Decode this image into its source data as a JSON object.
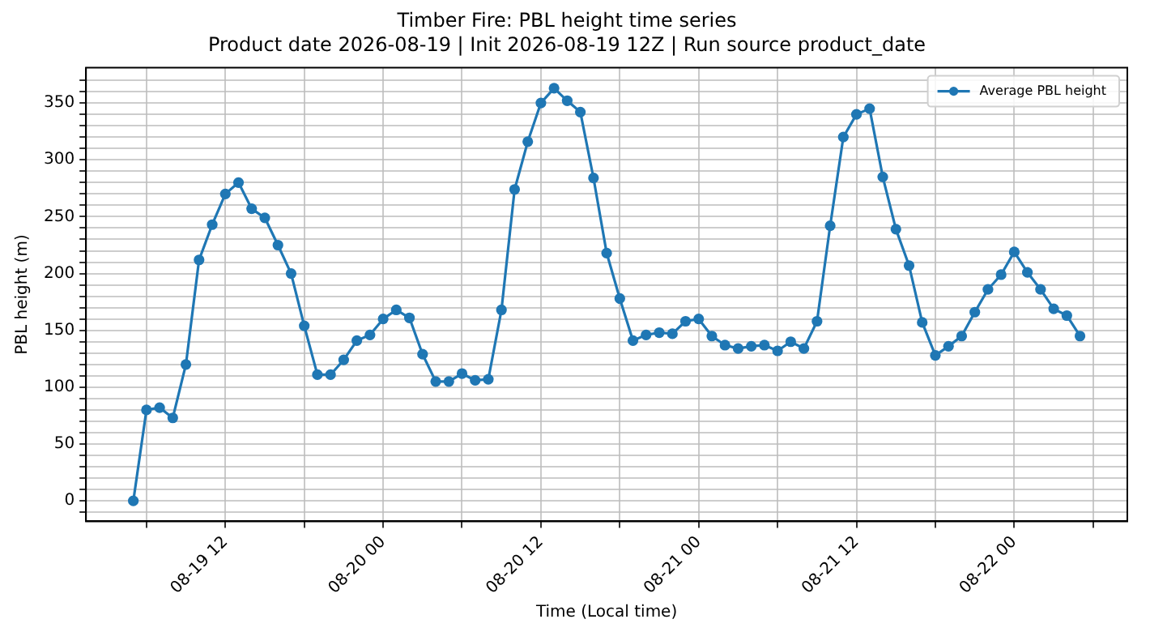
{
  "chart_data": {
    "type": "line",
    "title": "Timber Fire: PBL height time series",
    "subtitle": "Product date 2026-08-19 | Init 2026-08-19 12Z | Run source product_date",
    "xlabel": "Time (Local time)",
    "ylabel": "PBL height (m)",
    "x": [
      "2026-08-19T05:00",
      "2026-08-19T06:00",
      "2026-08-19T07:00",
      "2026-08-19T08:00",
      "2026-08-19T09:00",
      "2026-08-19T10:00",
      "2026-08-19T11:00",
      "2026-08-19T12:00",
      "2026-08-19T13:00",
      "2026-08-19T14:00",
      "2026-08-19T15:00",
      "2026-08-19T16:00",
      "2026-08-19T17:00",
      "2026-08-19T18:00",
      "2026-08-19T19:00",
      "2026-08-19T20:00",
      "2026-08-19T21:00",
      "2026-08-19T22:00",
      "2026-08-19T23:00",
      "2026-08-20T00:00",
      "2026-08-20T01:00",
      "2026-08-20T02:00",
      "2026-08-20T03:00",
      "2026-08-20T04:00",
      "2026-08-20T05:00",
      "2026-08-20T06:00",
      "2026-08-20T07:00",
      "2026-08-20T08:00",
      "2026-08-20T09:00",
      "2026-08-20T10:00",
      "2026-08-20T11:00",
      "2026-08-20T12:00",
      "2026-08-20T13:00",
      "2026-08-20T14:00",
      "2026-08-20T15:00",
      "2026-08-20T16:00",
      "2026-08-20T17:00",
      "2026-08-20T18:00",
      "2026-08-20T19:00",
      "2026-08-20T20:00",
      "2026-08-20T21:00",
      "2026-08-20T22:00",
      "2026-08-20T23:00",
      "2026-08-21T00:00",
      "2026-08-21T01:00",
      "2026-08-21T02:00",
      "2026-08-21T03:00",
      "2026-08-21T04:00",
      "2026-08-21T05:00",
      "2026-08-21T06:00",
      "2026-08-21T07:00",
      "2026-08-21T08:00",
      "2026-08-21T09:00",
      "2026-08-21T10:00",
      "2026-08-21T11:00",
      "2026-08-21T12:00",
      "2026-08-21T13:00",
      "2026-08-21T14:00",
      "2026-08-21T15:00",
      "2026-08-21T16:00",
      "2026-08-21T17:00",
      "2026-08-21T18:00",
      "2026-08-21T19:00",
      "2026-08-21T20:00",
      "2026-08-21T21:00",
      "2026-08-21T22:00",
      "2026-08-21T23:00",
      "2026-08-22T00:00",
      "2026-08-22T01:00",
      "2026-08-22T02:00",
      "2026-08-22T03:00",
      "2026-08-22T04:00",
      "2026-08-22T05:00"
    ],
    "series": [
      {
        "name": "Average PBL height",
        "color": "#1f77b4",
        "values": [
          0,
          80,
          82,
          73,
          120,
          212,
          243,
          270,
          280,
          257,
          249,
          225,
          200,
          154,
          111,
          111,
          124,
          141,
          146,
          160,
          168,
          161,
          129,
          105,
          105,
          112,
          106,
          107,
          168,
          274,
          316,
          350,
          363,
          352,
          342,
          284,
          218,
          178,
          141,
          146,
          148,
          147,
          158,
          160,
          145,
          137,
          134,
          136,
          137,
          132,
          140,
          134,
          158,
          242,
          320,
          340,
          345,
          285,
          239,
          207,
          157,
          128,
          136,
          145,
          166,
          186,
          199,
          219,
          201,
          186,
          169,
          163,
          145
        ]
      }
    ],
    "xlim": [
      "2026-08-19T01:24",
      "2026-08-22T08:36"
    ],
    "xticks": [
      {
        "value": "2026-08-19T06:00",
        "label": null
      },
      {
        "value": "2026-08-19T12:00",
        "label": "08-19 12"
      },
      {
        "value": "2026-08-19T18:00",
        "label": null
      },
      {
        "value": "2026-08-20T00:00",
        "label": "08-20 00"
      },
      {
        "value": "2026-08-20T06:00",
        "label": null
      },
      {
        "value": "2026-08-20T12:00",
        "label": "08-20 12"
      },
      {
        "value": "2026-08-20T18:00",
        "label": null
      },
      {
        "value": "2026-08-21T00:00",
        "label": "08-21 00"
      },
      {
        "value": "2026-08-21T06:00",
        "label": null
      },
      {
        "value": "2026-08-21T12:00",
        "label": "08-21 12"
      },
      {
        "value": "2026-08-21T18:00",
        "label": null
      },
      {
        "value": "2026-08-22T00:00",
        "label": "08-22 00"
      },
      {
        "value": "2026-08-22T06:00",
        "label": null
      }
    ],
    "ylim": [
      -18,
      381
    ],
    "yticks": [
      {
        "value": -10,
        "label": null
      },
      0,
      {
        "value": 10,
        "label": null
      },
      {
        "value": 20,
        "label": null
      },
      {
        "value": 30,
        "label": null
      },
      {
        "value": 40,
        "label": null
      },
      50,
      {
        "value": 60,
        "label": null
      },
      {
        "value": 70,
        "label": null
      },
      {
        "value": 80,
        "label": null
      },
      {
        "value": 90,
        "label": null
      },
      100,
      {
        "value": 110,
        "label": null
      },
      {
        "value": 120,
        "label": null
      },
      {
        "value": 130,
        "label": null
      },
      {
        "value": 140,
        "label": null
      },
      150,
      {
        "value": 160,
        "label": null
      },
      {
        "value": 170,
        "label": null
      },
      {
        "value": 180,
        "label": null
      },
      {
        "value": 190,
        "label": null
      },
      200,
      {
        "value": 210,
        "label": null
      },
      {
        "value": 220,
        "label": null
      },
      {
        "value": 230,
        "label": null
      },
      {
        "value": 240,
        "label": null
      },
      250,
      {
        "value": 260,
        "label": null
      },
      {
        "value": 270,
        "label": null
      },
      {
        "value": 280,
        "label": null
      },
      {
        "value": 290,
        "label": null
      },
      300,
      {
        "value": 310,
        "label": null
      },
      {
        "value": 320,
        "label": null
      },
      {
        "value": 330,
        "label": null
      },
      {
        "value": 340,
        "label": null
      },
      350,
      {
        "value": 360,
        "label": null
      },
      {
        "value": 370,
        "label": null
      }
    ],
    "grid": true,
    "legend": "top right",
    "marker": "circle",
    "line_style": "solid"
  }
}
